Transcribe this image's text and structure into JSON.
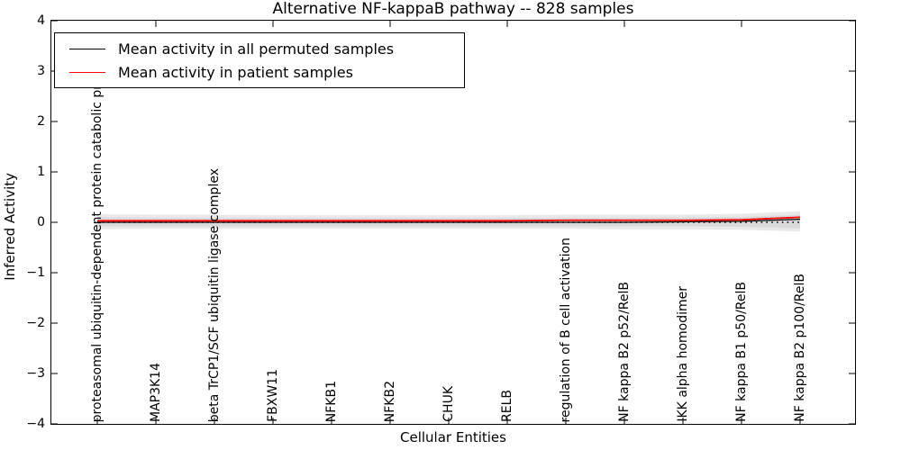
{
  "chart_data": {
    "type": "line",
    "title": "Alternative NF-kappaB pathway -- 828 samples",
    "xlabel": "Cellular Entities",
    "ylabel": "Inferred Activity",
    "ylim": [
      -4,
      4
    ],
    "yticks": [
      4,
      3,
      2,
      1,
      0,
      -1,
      -2,
      -3,
      -4
    ],
    "ytick_labels": [
      "4",
      "3",
      "2",
      "1",
      "0",
      "−1",
      "−2",
      "−3",
      "−4"
    ],
    "grid": false,
    "categories": [
      "proteasomal ubiquitin-dependent protein catabolic pr",
      "MAP3K14",
      "beta TrCP1/SCF ubiquitin ligase complex",
      "FBXW11",
      "NFKB1",
      "NFKB2",
      "CHUK",
      "RELB",
      "regulation of B cell activation",
      "NF kappa B2 p52/RelB",
      "IKK alpha homodimer",
      "NF kappa B1 p50/RelB",
      "NF kappa B2 p100/RelB"
    ],
    "top_ticks_at_category_indices": [
      1,
      3,
      5,
      7,
      9,
      11
    ],
    "series": [
      {
        "name": "zero-baseline",
        "line_style": "dotted",
        "color": "#000000",
        "values": [
          0,
          0,
          0,
          0,
          0,
          0,
          0,
          0,
          0,
          0,
          0,
          0,
          0
        ]
      },
      {
        "name": "Mean activity in all permuted samples",
        "line_style": "solid",
        "color": "#000000",
        "values": [
          0,
          0,
          0,
          0,
          0,
          0,
          0,
          0,
          0,
          0,
          0.01,
          0.02,
          0.06
        ]
      },
      {
        "name": "Mean activity in patient samples",
        "line_style": "solid",
        "color": "#ff0000",
        "values": [
          0.03,
          0.03,
          0.03,
          0.03,
          0.03,
          0.03,
          0.03,
          0.03,
          0.04,
          0.04,
          0.04,
          0.05,
          0.1
        ]
      }
    ],
    "bands": [
      {
        "name": "permuted-std-outer",
        "color": "#e9e9e9",
        "upper": [
          0.16,
          0.15,
          0.15,
          0.14,
          0.14,
          0.14,
          0.14,
          0.14,
          0.15,
          0.15,
          0.15,
          0.17,
          0.22
        ],
        "lower": [
          -0.14,
          -0.13,
          -0.13,
          -0.13,
          -0.13,
          -0.13,
          -0.13,
          -0.13,
          -0.13,
          -0.14,
          -0.14,
          -0.15,
          -0.18
        ]
      },
      {
        "name": "permuted-std-inner",
        "color": "#dadada",
        "upper": [
          0.1,
          0.09,
          0.09,
          0.09,
          0.09,
          0.09,
          0.09,
          0.09,
          0.09,
          0.09,
          0.1,
          0.11,
          0.15
        ],
        "lower": [
          -0.08,
          -0.08,
          -0.08,
          -0.08,
          -0.08,
          -0.08,
          -0.08,
          -0.08,
          -0.08,
          -0.08,
          -0.08,
          -0.09,
          -0.12
        ]
      }
    ],
    "legend": {
      "position": "upper left",
      "items": [
        {
          "label": "Mean activity in all permuted samples",
          "color": "#000000"
        },
        {
          "label": "Mean activity in patient samples",
          "color": "#ff0000"
        }
      ]
    }
  }
}
